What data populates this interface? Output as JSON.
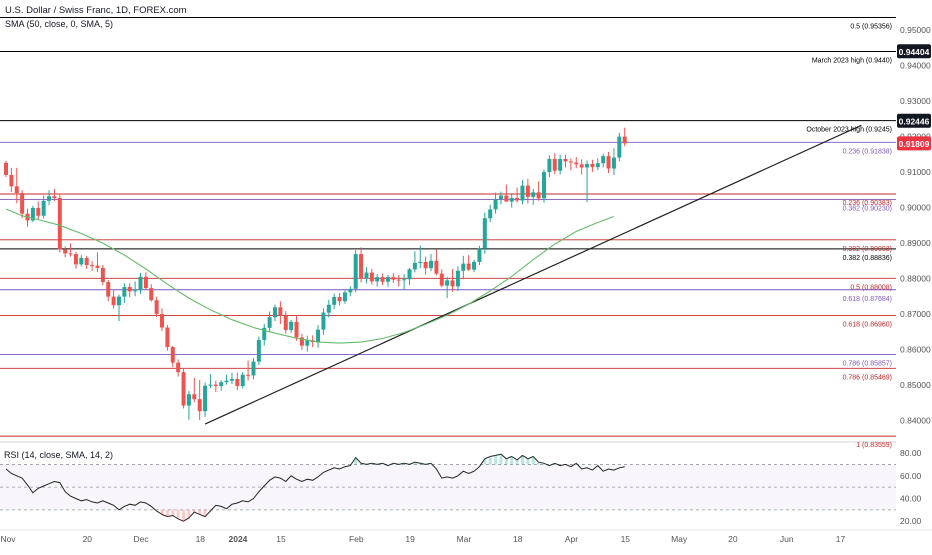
{
  "header": {
    "symbol_line": "U.S. Dollar / Swiss Franc, 1D, FOREX.com",
    "sma_line": "SMA (50, close, 0, SMA, 5)",
    "rsi_line": "RSI (14, close, SMA, 14, 2)"
  },
  "colors": {
    "up": "#26a69a",
    "down": "#ef5350",
    "sma": "#66bb6a",
    "rsi": "#222222",
    "fib_blue": "#7e57c2",
    "fib_red": "#c62828",
    "trendline": "#222222",
    "last_price": "#ef3340"
  },
  "chart_data": [
    {
      "type": "candlestick",
      "title": "U.S. Dollar / Swiss Franc, 1D, FOREX.com",
      "ylim": [
        0.8345,
        0.9585
      ],
      "y_ticks": [
        "0.95000",
        "0.94000",
        "0.93000",
        "0.92000",
        "0.91000",
        "0.90000",
        "0.89000",
        "0.88000",
        "0.87000",
        "0.86000",
        "0.85000",
        "0.84000"
      ],
      "x_ticks": [
        "Nov",
        "20",
        "Dec",
        "18",
        "2024",
        "15",
        "Feb",
        "19",
        "Mar",
        "18",
        "Apr",
        "15",
        "May",
        "20",
        "Jun",
        "17"
      ],
      "price_labels": [
        {
          "text": "0.92446",
          "value": 0.92446,
          "style": "dark"
        },
        {
          "text": "0.94404",
          "value": 0.94404,
          "style": "dark"
        },
        {
          "text": "0.91809",
          "value": 0.91809,
          "style": "last"
        }
      ],
      "last_close": 0.91809,
      "levels": [
        {
          "label": "0.5 (0.95356)",
          "value": 0.95356,
          "kind": "black"
        },
        {
          "label": "March 2023 high (0.9440)",
          "value": 0.944,
          "kind": "black"
        },
        {
          "label": "October 2023 high (0.9245)",
          "value": 0.9245,
          "kind": "black"
        },
        {
          "label": "0.236 (0.91838)",
          "value": 0.91838,
          "kind": "blue"
        },
        {
          "label": "0.236 (0.90383)",
          "value": 0.90383,
          "kind": "red"
        },
        {
          "label": "0.382 (0.90230)",
          "value": 0.9023,
          "kind": "blue"
        },
        {
          "label": "0.382 (0.89093)",
          "value": 0.89093,
          "kind": "red"
        },
        {
          "label": "0.382 (0.88836)",
          "value": 0.88836,
          "kind": "black"
        },
        {
          "label": "0.5 (0.88008)",
          "value": 0.88008,
          "kind": "red"
        },
        {
          "label": "0.618 (0.87684)",
          "value": 0.87684,
          "kind": "blue"
        },
        {
          "label": "0.618 (0.86960)",
          "value": 0.8696,
          "kind": "red"
        },
        {
          "label": "0.786 (0.85857)",
          "value": 0.85857,
          "kind": "blue"
        },
        {
          "label": "0.786 (0.85469)",
          "value": 0.85469,
          "kind": "red"
        },
        {
          "label": "1 (0.83559)",
          "value": 0.83559,
          "kind": "red"
        }
      ],
      "trendline": {
        "start": [
          37,
          0.839
        ],
        "end": [
          159,
          0.9232
        ]
      },
      "candles": [
        [
          0.9126,
          0.9132,
          0.9086,
          0.9092
        ],
        [
          0.9092,
          0.9112,
          0.9044,
          0.906
        ],
        [
          0.906,
          0.9112,
          0.9012,
          0.9041
        ],
        [
          0.9041,
          0.9049,
          0.897,
          0.8983
        ],
        [
          0.8983,
          0.8997,
          0.8946,
          0.8964
        ],
        [
          0.8964,
          0.9005,
          0.8959,
          0.8999
        ],
        [
          0.8999,
          0.9017,
          0.8966,
          0.8977
        ],
        [
          0.8977,
          0.9034,
          0.8969,
          0.9019
        ],
        [
          0.9019,
          0.9049,
          0.9007,
          0.9032
        ],
        [
          0.9032,
          0.9053,
          0.9018,
          0.9027
        ],
        [
          0.9027,
          0.9039,
          0.8874,
          0.8882
        ],
        [
          0.8882,
          0.8891,
          0.886,
          0.8871
        ],
        [
          0.8871,
          0.8899,
          0.8862,
          0.8869
        ],
        [
          0.8869,
          0.8875,
          0.8828,
          0.884
        ],
        [
          0.884,
          0.8866,
          0.8834,
          0.8858
        ],
        [
          0.8858,
          0.8864,
          0.8827,
          0.8838
        ],
        [
          0.8838,
          0.8849,
          0.8822,
          0.8836
        ],
        [
          0.8836,
          0.8874,
          0.8818,
          0.883
        ],
        [
          0.883,
          0.8838,
          0.8781,
          0.879
        ],
        [
          0.879,
          0.8796,
          0.8736,
          0.8749
        ],
        [
          0.8749,
          0.8767,
          0.8715,
          0.8725
        ],
        [
          0.8725,
          0.8755,
          0.868,
          0.8749
        ],
        [
          0.8749,
          0.8787,
          0.8731,
          0.8776
        ],
        [
          0.8776,
          0.8787,
          0.8748,
          0.8764
        ],
        [
          0.8764,
          0.8792,
          0.875,
          0.8767
        ],
        [
          0.8767,
          0.8816,
          0.8757,
          0.8805
        ],
        [
          0.8805,
          0.8818,
          0.8768,
          0.8773
        ],
        [
          0.8773,
          0.8784,
          0.8735,
          0.8739
        ],
        [
          0.8739,
          0.8749,
          0.8691,
          0.87
        ],
        [
          0.87,
          0.8716,
          0.8652,
          0.8662
        ],
        [
          0.8662,
          0.8669,
          0.8597,
          0.8607
        ],
        [
          0.8607,
          0.861,
          0.855,
          0.8563
        ],
        [
          0.8563,
          0.8572,
          0.8524,
          0.8536
        ],
        [
          0.8536,
          0.8548,
          0.8434,
          0.8442
        ],
        [
          0.8442,
          0.8483,
          0.8402,
          0.8474
        ],
        [
          0.8474,
          0.852,
          0.8451,
          0.846
        ],
        [
          0.846,
          0.8514,
          0.8401,
          0.8426
        ],
        [
          0.8426,
          0.8507,
          0.841,
          0.8498
        ],
        [
          0.8498,
          0.8531,
          0.8491,
          0.8501
        ],
        [
          0.8501,
          0.8512,
          0.848,
          0.8497
        ],
        [
          0.8497,
          0.8514,
          0.8484,
          0.8508
        ],
        [
          0.8508,
          0.8529,
          0.8501,
          0.8512
        ],
        [
          0.8512,
          0.8534,
          0.8503,
          0.8517
        ],
        [
          0.8517,
          0.8535,
          0.8486,
          0.8497
        ],
        [
          0.8497,
          0.8536,
          0.849,
          0.8529
        ],
        [
          0.8529,
          0.8569,
          0.8513,
          0.8527
        ],
        [
          0.8527,
          0.8576,
          0.8516,
          0.8566
        ],
        [
          0.8566,
          0.8637,
          0.8556,
          0.8627
        ],
        [
          0.8627,
          0.8672,
          0.8611,
          0.8661
        ],
        [
          0.8661,
          0.8707,
          0.8649,
          0.8691
        ],
        [
          0.8691,
          0.8727,
          0.868,
          0.8719
        ],
        [
          0.8719,
          0.8736,
          0.8672,
          0.8695
        ],
        [
          0.8695,
          0.8708,
          0.8645,
          0.8655
        ],
        [
          0.8655,
          0.8684,
          0.8647,
          0.8678
        ],
        [
          0.8678,
          0.8696,
          0.8625,
          0.8634
        ],
        [
          0.8634,
          0.8644,
          0.8599,
          0.8611
        ],
        [
          0.8611,
          0.8639,
          0.8594,
          0.8626
        ],
        [
          0.8626,
          0.864,
          0.8607,
          0.8621
        ],
        [
          0.8621,
          0.8669,
          0.8605,
          0.8656
        ],
        [
          0.8656,
          0.8716,
          0.8641,
          0.8704
        ],
        [
          0.8704,
          0.874,
          0.869,
          0.8726
        ],
        [
          0.8726,
          0.8758,
          0.8714,
          0.8748
        ],
        [
          0.8748,
          0.8759,
          0.8724,
          0.8736
        ],
        [
          0.8736,
          0.8767,
          0.8729,
          0.8761
        ],
        [
          0.8761,
          0.8778,
          0.875,
          0.8771
        ],
        [
          0.8771,
          0.888,
          0.8761,
          0.8869
        ],
        [
          0.8869,
          0.8888,
          0.8789,
          0.88
        ],
        [
          0.88,
          0.8832,
          0.8786,
          0.8817
        ],
        [
          0.8817,
          0.8828,
          0.8783,
          0.8792
        ],
        [
          0.8792,
          0.8813,
          0.8777,
          0.8804
        ],
        [
          0.8804,
          0.8814,
          0.8781,
          0.8791
        ],
        [
          0.8791,
          0.881,
          0.8777,
          0.8804
        ],
        [
          0.8804,
          0.8815,
          0.8788,
          0.8797
        ],
        [
          0.8797,
          0.881,
          0.8778,
          0.8796
        ],
        [
          0.8796,
          0.8812,
          0.8769,
          0.8798
        ],
        [
          0.8798,
          0.883,
          0.8782,
          0.8826
        ],
        [
          0.8826,
          0.8877,
          0.8818,
          0.8844
        ],
        [
          0.8844,
          0.8893,
          0.8829,
          0.8847
        ],
        [
          0.8847,
          0.8862,
          0.8811,
          0.8829
        ],
        [
          0.8829,
          0.8869,
          0.8821,
          0.885
        ],
        [
          0.885,
          0.8882,
          0.8809,
          0.8814
        ],
        [
          0.8814,
          0.8826,
          0.8775,
          0.878
        ],
        [
          0.878,
          0.8804,
          0.8745,
          0.8795
        ],
        [
          0.8795,
          0.8827,
          0.8763,
          0.8778
        ],
        [
          0.8778,
          0.8834,
          0.8765,
          0.8822
        ],
        [
          0.8822,
          0.8864,
          0.8798,
          0.8842
        ],
        [
          0.8842,
          0.8866,
          0.8821,
          0.8825
        ],
        [
          0.8825,
          0.8853,
          0.8818,
          0.8847
        ],
        [
          0.8847,
          0.8892,
          0.8838,
          0.8884
        ],
        [
          0.8884,
          0.8986,
          0.887,
          0.897
        ],
        [
          0.897,
          0.9008,
          0.8959,
          0.8995
        ],
        [
          0.8995,
          0.9042,
          0.8983,
          0.9024
        ],
        [
          0.9024,
          0.9045,
          0.9009,
          0.9034
        ],
        [
          0.9034,
          0.9065,
          0.9016,
          0.9017
        ],
        [
          0.9017,
          0.9037,
          0.9,
          0.9027
        ],
        [
          0.9027,
          0.9057,
          0.9014,
          0.902
        ],
        [
          0.902,
          0.9077,
          0.9009,
          0.9062
        ],
        [
          0.9062,
          0.9081,
          0.9012,
          0.903
        ],
        [
          0.903,
          0.9053,
          0.9008,
          0.9043
        ],
        [
          0.9043,
          0.9074,
          0.9019,
          0.9026
        ],
        [
          0.9026,
          0.9107,
          0.9014,
          0.91
        ],
        [
          0.91,
          0.9147,
          0.9086,
          0.9137
        ],
        [
          0.9137,
          0.9153,
          0.9094,
          0.9104
        ],
        [
          0.9104,
          0.9149,
          0.9093,
          0.9137
        ],
        [
          0.9137,
          0.9149,
          0.9113,
          0.913
        ],
        [
          0.913,
          0.9139,
          0.9105,
          0.9127
        ],
        [
          0.9127,
          0.9142,
          0.9111,
          0.9122
        ],
        [
          0.9122,
          0.9136,
          0.9093,
          0.9113
        ],
        [
          0.9113,
          0.9133,
          0.9015,
          0.9123
        ],
        [
          0.9123,
          0.9135,
          0.9101,
          0.9114
        ],
        [
          0.9114,
          0.9139,
          0.9105,
          0.9125
        ],
        [
          0.9125,
          0.9152,
          0.9113,
          0.9145
        ],
        [
          0.9145,
          0.9157,
          0.9097,
          0.911
        ],
        [
          0.911,
          0.9167,
          0.9092,
          0.9141
        ],
        [
          0.9141,
          0.9211,
          0.913,
          0.92
        ],
        [
          0.92,
          0.9225,
          0.9173,
          0.9181
        ]
      ],
      "sma": [
        [
          0,
          0.8996
        ],
        [
          3,
          0.8977
        ],
        [
          6,
          0.8966
        ],
        [
          10,
          0.895
        ],
        [
          14,
          0.8927
        ],
        [
          18,
          0.89
        ],
        [
          22,
          0.8866
        ],
        [
          26,
          0.8827
        ],
        [
          30,
          0.8784
        ],
        [
          34,
          0.8745
        ],
        [
          38,
          0.8712
        ],
        [
          42,
          0.8684
        ],
        [
          46,
          0.8662
        ],
        [
          50,
          0.8646
        ],
        [
          54,
          0.8632
        ],
        [
          58,
          0.8621
        ],
        [
          62,
          0.8618
        ],
        [
          66,
          0.8621
        ],
        [
          70,
          0.8631
        ],
        [
          74,
          0.8648
        ],
        [
          78,
          0.8671
        ],
        [
          82,
          0.8697
        ],
        [
          86,
          0.8728
        ],
        [
          90,
          0.8765
        ],
        [
          94,
          0.8806
        ],
        [
          98,
          0.8853
        ],
        [
          102,
          0.8897
        ],
        [
          106,
          0.8933
        ],
        [
          110,
          0.8958
        ],
        [
          113,
          0.8975
        ]
      ],
      "rsi": {
        "ylim": [
          14,
          88
        ],
        "y_ticks": [
          "80.00",
          "60.00",
          "40.00",
          "20.00"
        ],
        "bands": [
          70,
          50,
          30
        ],
        "values": [
          66,
          62,
          60,
          58,
          52,
          45,
          49,
          51,
          53,
          55,
          54,
          46,
          42,
          40,
          38,
          39,
          37,
          36,
          38,
          36,
          34,
          30,
          33,
          35,
          34,
          37,
          36,
          33,
          29,
          26,
          24,
          25,
          22,
          20,
          23,
          28,
          26,
          24,
          29,
          34,
          33,
          31,
          35,
          36,
          38,
          37,
          40,
          46,
          51,
          56,
          59,
          58,
          55,
          60,
          57,
          55,
          57,
          56,
          59,
          63,
          65,
          67,
          66,
          68,
          69,
          76,
          71,
          70,
          71,
          70,
          71,
          69,
          71,
          70,
          71,
          70,
          72,
          71,
          70,
          71,
          66,
          58,
          59,
          58,
          60,
          64,
          62,
          64,
          68,
          75,
          77,
          78,
          79,
          75,
          77,
          74,
          78,
          75,
          77,
          72,
          71,
          69,
          71,
          69,
          70,
          68,
          71,
          66,
          67,
          65,
          69,
          64,
          66,
          65,
          67,
          68
        ]
      }
    }
  ]
}
